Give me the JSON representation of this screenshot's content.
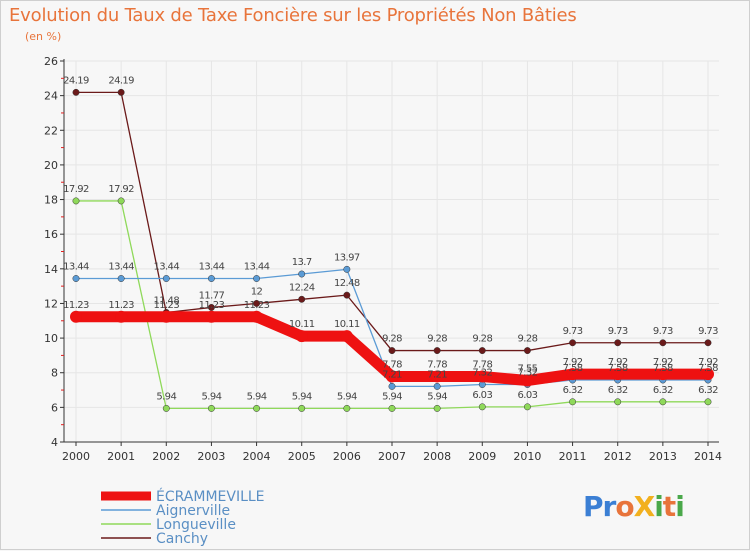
{
  "title": "Evolution du Taux de Taxe Foncière sur les Propriétés Non Bâties",
  "unit": "(en %)",
  "logo": {
    "text": "ProXiti",
    "colors": [
      "#3b7fd4",
      "#e8743b",
      "#f2b01e",
      "#4aa84a"
    ]
  },
  "chart_data": {
    "type": "line",
    "title": "Evolution du Taux de Taxe Foncière sur les Propriétés Non Bâties",
    "ylabel": "(en %)",
    "xlabel": "",
    "ylim": [
      4,
      26
    ],
    "yticks": [
      4,
      6,
      8,
      10,
      12,
      14,
      16,
      18,
      20,
      22,
      24,
      26
    ],
    "x": [
      "2000",
      "2001",
      "2002",
      "2003",
      "2004",
      "2005",
      "2006",
      "2007",
      "2008",
      "2009",
      "2010",
      "2011",
      "2012",
      "2013",
      "2014"
    ],
    "legend_position": "bottom-left",
    "series": [
      {
        "name": "Canchy",
        "color": "#6b1a1a",
        "values": [
          24.19,
          24.19,
          11.48,
          11.77,
          12,
          12.24,
          12.48,
          9.28,
          9.28,
          9.28,
          9.28,
          9.73,
          9.73,
          9.73,
          9.73
        ],
        "labels": [
          "24.19",
          "24.19",
          "11.48",
          "11.77",
          "12",
          "12.24",
          "12.48",
          "9.28",
          "9.28",
          "9.28",
          "9.28",
          "9.73",
          "9.73",
          "9.73",
          "9.73"
        ]
      },
      {
        "name": "Longueville",
        "color": "#8fd95a",
        "values": [
          17.92,
          17.92,
          5.94,
          5.94,
          5.94,
          5.94,
          5.94,
          5.94,
          5.94,
          6.03,
          6.03,
          6.32,
          6.32,
          6.32,
          6.32
        ],
        "labels": [
          "17.92",
          "17.92",
          "5.94",
          "5.94",
          "5.94",
          "5.94",
          "5.94",
          "5.94",
          "5.94",
          "6.03",
          "6.03",
          "6.32",
          "6.32",
          "6.32",
          "6.32"
        ]
      },
      {
        "name": "Aignerville",
        "color": "#5b9bd5",
        "values": [
          13.44,
          13.44,
          13.44,
          13.44,
          13.44,
          13.7,
          13.97,
          7.21,
          7.21,
          7.32,
          7.32,
          7.58,
          7.58,
          7.58,
          7.58
        ],
        "labels": [
          "13.44",
          "13.44",
          "13.44",
          "13.44",
          "13.44",
          "13.7",
          "13.97",
          "7.21",
          "7.21",
          "7.32",
          "7.32",
          "7.58",
          "7.58",
          "7.58",
          "7.58"
        ]
      },
      {
        "name": "ÉCRAMMEVILLE",
        "color": "#ee1111",
        "values": [
          11.23,
          11.23,
          11.23,
          11.23,
          11.23,
          10.11,
          10.11,
          7.78,
          7.78,
          7.78,
          7.55,
          7.92,
          7.92,
          7.92,
          7.92
        ],
        "labels": [
          "11.23",
          "11.23",
          "11.23",
          "11.23",
          "11.23",
          "10.11",
          "10.11",
          "7.78",
          "7.78",
          "7.78",
          "7.55",
          "7.92",
          "7.92",
          "7.92",
          "7.92"
        ]
      }
    ],
    "legend": [
      "ÉCRAMMEVILLE",
      "Aignerville",
      "Longueville",
      "Canchy"
    ]
  }
}
